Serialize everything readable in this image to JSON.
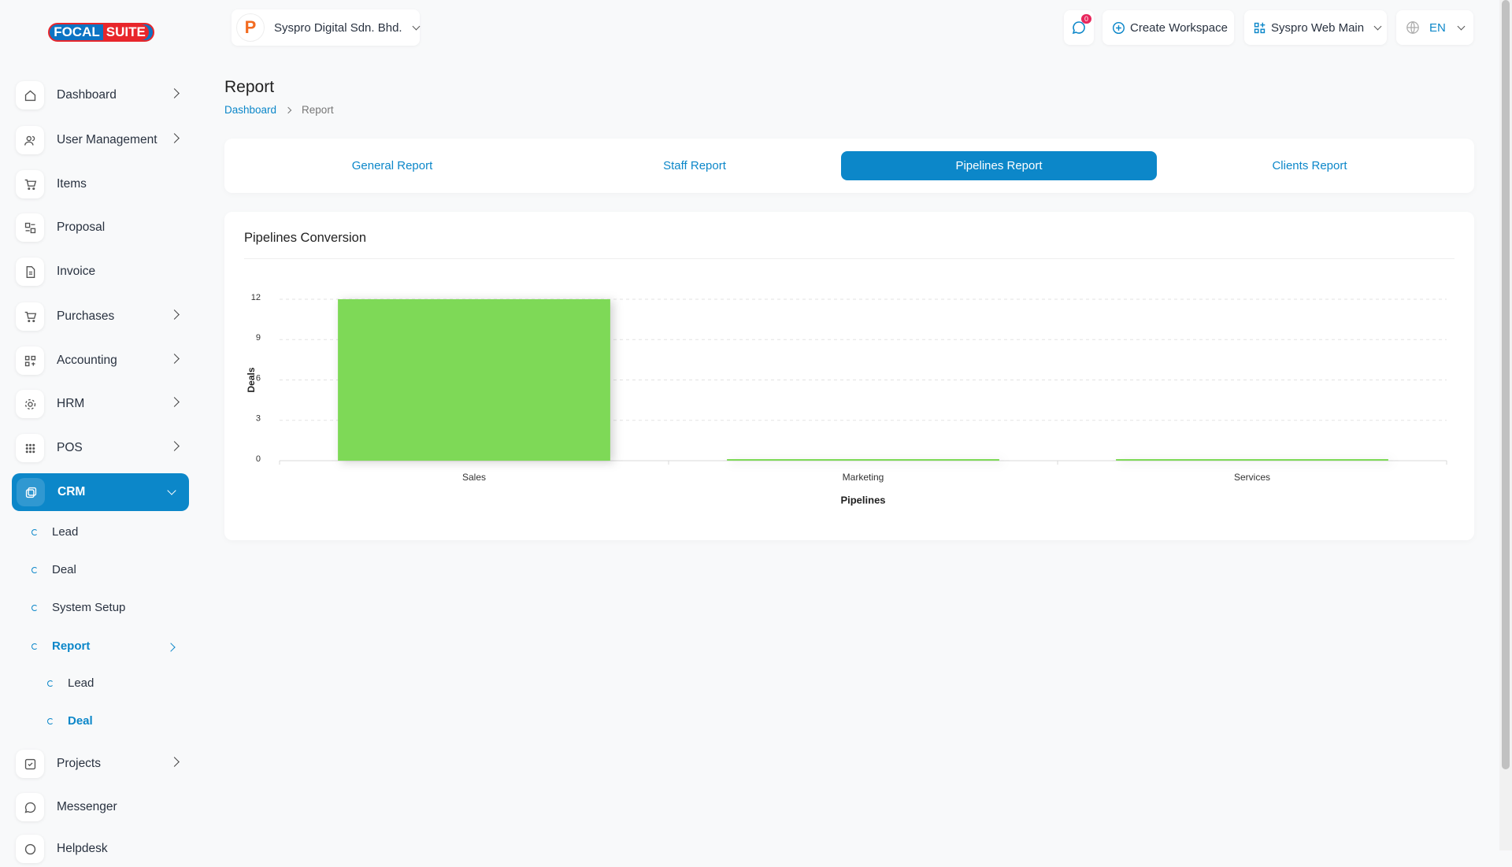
{
  "brand": {
    "logo_left": "FOCAL",
    "logo_right": "SUITE"
  },
  "header": {
    "company": "Syspro Digital Sdn. Bhd.",
    "notifications": "0",
    "create_workspace": "Create Workspace",
    "workspace": "Syspro Web Main",
    "language": "EN"
  },
  "sidebar": {
    "items": [
      "Dashboard",
      "User Management",
      "Items",
      "Proposal",
      "Invoice",
      "Purchases",
      "Accounting",
      "HRM",
      "POS",
      "CRM"
    ],
    "crm_sub": [
      "Lead",
      "Deal",
      "System Setup",
      "Report"
    ],
    "report_sub": [
      "Lead",
      "Deal"
    ],
    "more": [
      "Projects",
      "Messenger",
      "Helpdesk"
    ]
  },
  "page": {
    "title": "Report",
    "breadcrumb": [
      "Dashboard",
      "Report"
    ]
  },
  "tabs": [
    "General Report",
    "Staff Report",
    "Pipelines Report",
    "Clients Report"
  ],
  "chart_data": {
    "type": "bar",
    "title": "Pipelines Conversion",
    "categories": [
      "Sales",
      "Marketing",
      "Services"
    ],
    "values": [
      12,
      0,
      0
    ],
    "color": "#7ed957",
    "xlabel": "Pipelines",
    "ylabel": "Deals",
    "ylim": [
      0,
      12
    ],
    "yticks": [
      0,
      3,
      6,
      9,
      12
    ],
    "grid": true
  }
}
